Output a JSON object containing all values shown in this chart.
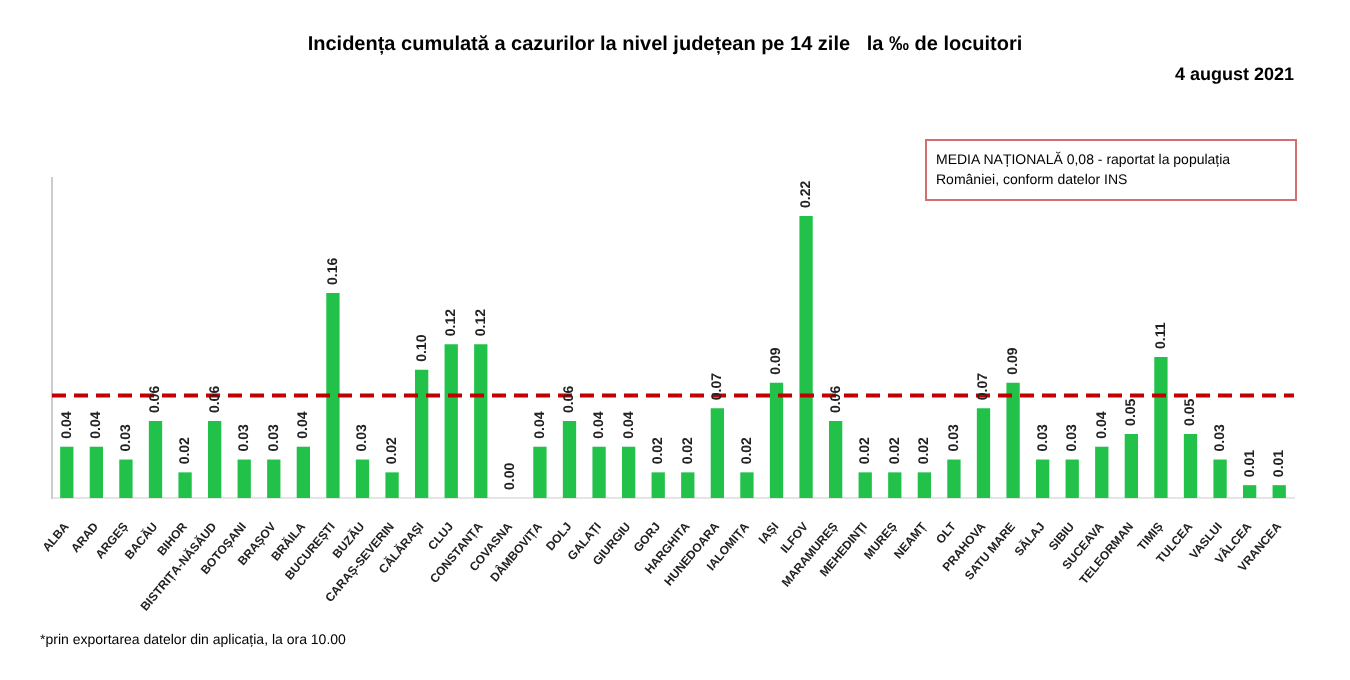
{
  "chart_data": {
    "type": "bar",
    "title": "Incidența cumulată a cazurilor la nivel județean pe 14 zile   la ‰ de locuitori",
    "subtitle": "4 august 2021",
    "categories": [
      "ALBA",
      "ARAD",
      "ARGEȘ",
      "BACĂU",
      "BIHOR",
      "BISTRIȚA-NĂSĂUD",
      "BOTOȘANI",
      "BRAȘOV",
      "BRĂILA",
      "BUCUREȘTI",
      "BUZĂU",
      "CARAȘ-SEVERIN",
      "CĂLĂRAȘI",
      "CLUJ",
      "CONSTANȚA",
      "COVASNA",
      "DÂMBOVIȚA",
      "DOLJ",
      "GALAȚI",
      "GIURGIU",
      "GORJ",
      "HARGHITA",
      "HUNEDOARA",
      "IALOMIȚA",
      "IAȘI",
      "ILFOV",
      "MARAMUREȘ",
      "MEHEDINȚI",
      "MUREȘ",
      "NEAMȚ",
      "OLT",
      "PRAHOVA",
      "SATU MARE",
      "SĂLAJ",
      "SIBIU",
      "SUCEAVA",
      "TELEORMAN",
      "TIMIȘ",
      "TULCEA",
      "VASLUI",
      "VÂLCEA",
      "VRANCEA"
    ],
    "values": [
      0.04,
      0.04,
      0.03,
      0.06,
      0.02,
      0.06,
      0.03,
      0.03,
      0.04,
      0.16,
      0.03,
      0.02,
      0.1,
      0.12,
      0.12,
      0.0,
      0.04,
      0.06,
      0.04,
      0.04,
      0.02,
      0.02,
      0.07,
      0.02,
      0.09,
      0.22,
      0.06,
      0.02,
      0.02,
      0.02,
      0.03,
      0.07,
      0.09,
      0.03,
      0.03,
      0.04,
      0.05,
      0.11,
      0.05,
      0.03,
      0.01,
      0.01
    ],
    "value_labels": [
      "0.04",
      "0.04",
      "0.03",
      "0.06",
      "0.02",
      "0.06",
      "0.03",
      "0.03",
      "0.04",
      "0.16",
      "0.03",
      "0.02",
      "0.10",
      "0.12",
      "0.12",
      "0.00",
      "0.04",
      "0.06",
      "0.04",
      "0.04",
      "0.02",
      "0.02",
      "0.07",
      "0.02",
      "0.09",
      "0.22",
      "0.06",
      "0.02",
      "0.02",
      "0.02",
      "0.03",
      "0.07",
      "0.09",
      "0.03",
      "0.03",
      "0.04",
      "0.05",
      "0.11",
      "0.05",
      "0.03",
      "0.01",
      "0.01"
    ],
    "color": "#22c24a",
    "ref_lines": [
      {
        "axis": "y",
        "value": 0.08,
        "color": "#c00000",
        "line_style": "dashed"
      }
    ],
    "annotations": [
      "MEDIA NAȚIONALĂ 0,08 - raportat la populația României, conform datelor INS",
      "*prin exportarea datelor din aplicația, la ora 10.00"
    ],
    "grid": false,
    "legend": false
  }
}
